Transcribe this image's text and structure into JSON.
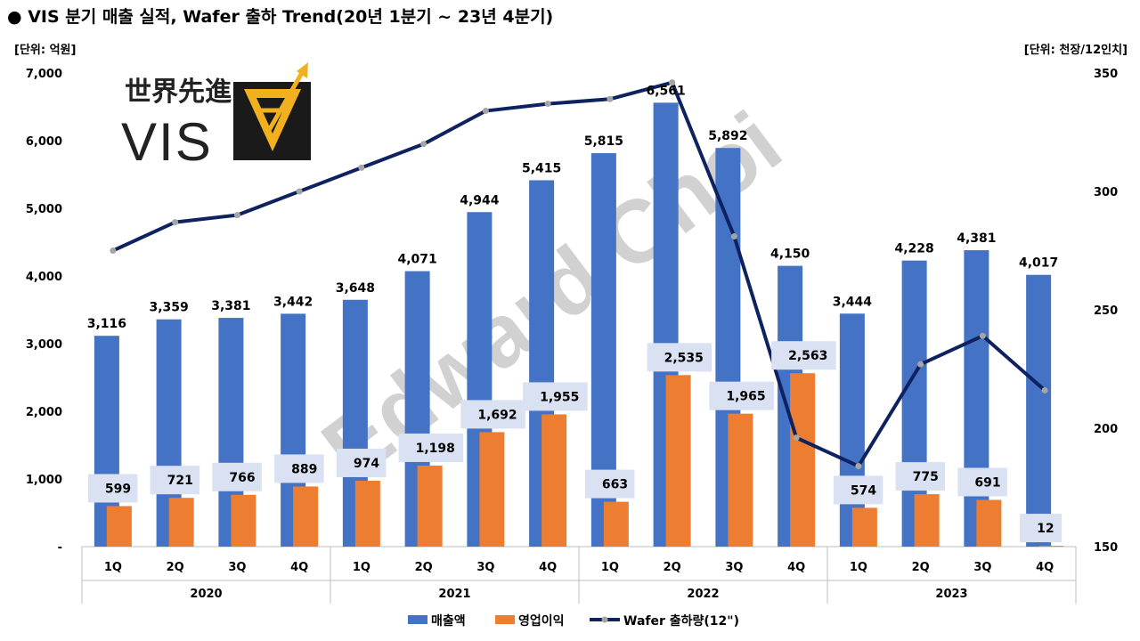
{
  "header": {
    "title": "● VIS 분기 매출 실적, Wafer 출하  Trend(20년 1분기 ~ 23년 4분기)",
    "left_unit": "[단위: 억원]",
    "right_unit": "[단위: 천장/12인치]"
  },
  "logo": {
    "chinese": "世界先進",
    "text": "VIS"
  },
  "watermark": "Edward Choi",
  "colors": {
    "revenue": "#4472C4",
    "profit": "#ED7D31",
    "wafer": "#0E2160",
    "label_bg": "#D9E1F2",
    "marker": "#A5A5A5"
  },
  "chart_data": {
    "type": "bar",
    "categories": [
      "1Q",
      "2Q",
      "3Q",
      "4Q",
      "1Q",
      "2Q",
      "3Q",
      "4Q",
      "1Q",
      "2Q",
      "3Q",
      "4Q",
      "1Q",
      "2Q",
      "3Q",
      "4Q"
    ],
    "groups": [
      {
        "label": "2020",
        "span": 4
      },
      {
        "label": "2021",
        "span": 4
      },
      {
        "label": "2022",
        "span": 4
      },
      {
        "label": "2023",
        "span": 4
      }
    ],
    "series": [
      {
        "name": "매출액",
        "type": "bar",
        "axis": "left",
        "values": [
          3116,
          3359,
          3381,
          3442,
          3648,
          4071,
          4944,
          5415,
          5815,
          6561,
          5892,
          4150,
          3444,
          4228,
          4381,
          4017
        ],
        "labels": [
          "3,116",
          "3,359",
          "3,381",
          "3,442",
          "3,648",
          "4,071",
          "4,944",
          "5,415",
          "5,815",
          "6,561",
          "5,892",
          "4,150",
          "3,444",
          "4,228",
          "4,381",
          "4,017"
        ]
      },
      {
        "name": "영업이익",
        "type": "bar",
        "axis": "left",
        "values": [
          599,
          721,
          766,
          889,
          974,
          1198,
          1692,
          1955,
          663,
          2535,
          1965,
          2563,
          574,
          775,
          691,
          12
        ],
        "labels": [
          "599",
          "721",
          "766",
          "889",
          "974",
          "1,198",
          "1,692",
          "1,955",
          "663",
          "2,535",
          "1,965",
          "2,563",
          "574",
          "775",
          "691",
          "12"
        ]
      },
      {
        "name": "Wafer 출하량(12\")",
        "type": "line",
        "axis": "right",
        "values": [
          275,
          287,
          290,
          300,
          310,
          320,
          334,
          337,
          339,
          346,
          281,
          196,
          184,
          227,
          239,
          216
        ]
      }
    ],
    "y_left": {
      "min": 0,
      "max": 7000,
      "ticks": [
        0,
        1000,
        2000,
        3000,
        4000,
        5000,
        6000,
        7000
      ],
      "tick_labels": [
        "-",
        "1,000",
        "2,000",
        "3,000",
        "4,000",
        "5,000",
        "6,000",
        "7,000"
      ]
    },
    "y_right": {
      "min": 150,
      "max": 350,
      "ticks": [
        150,
        200,
        250,
        300,
        350
      ],
      "tick_labels": [
        "150",
        "200",
        "250",
        "300",
        "350"
      ]
    },
    "legend": [
      "매출액",
      "영업이익",
      "Wafer 출하량(12\")"
    ],
    "legend_position": "bottom"
  }
}
